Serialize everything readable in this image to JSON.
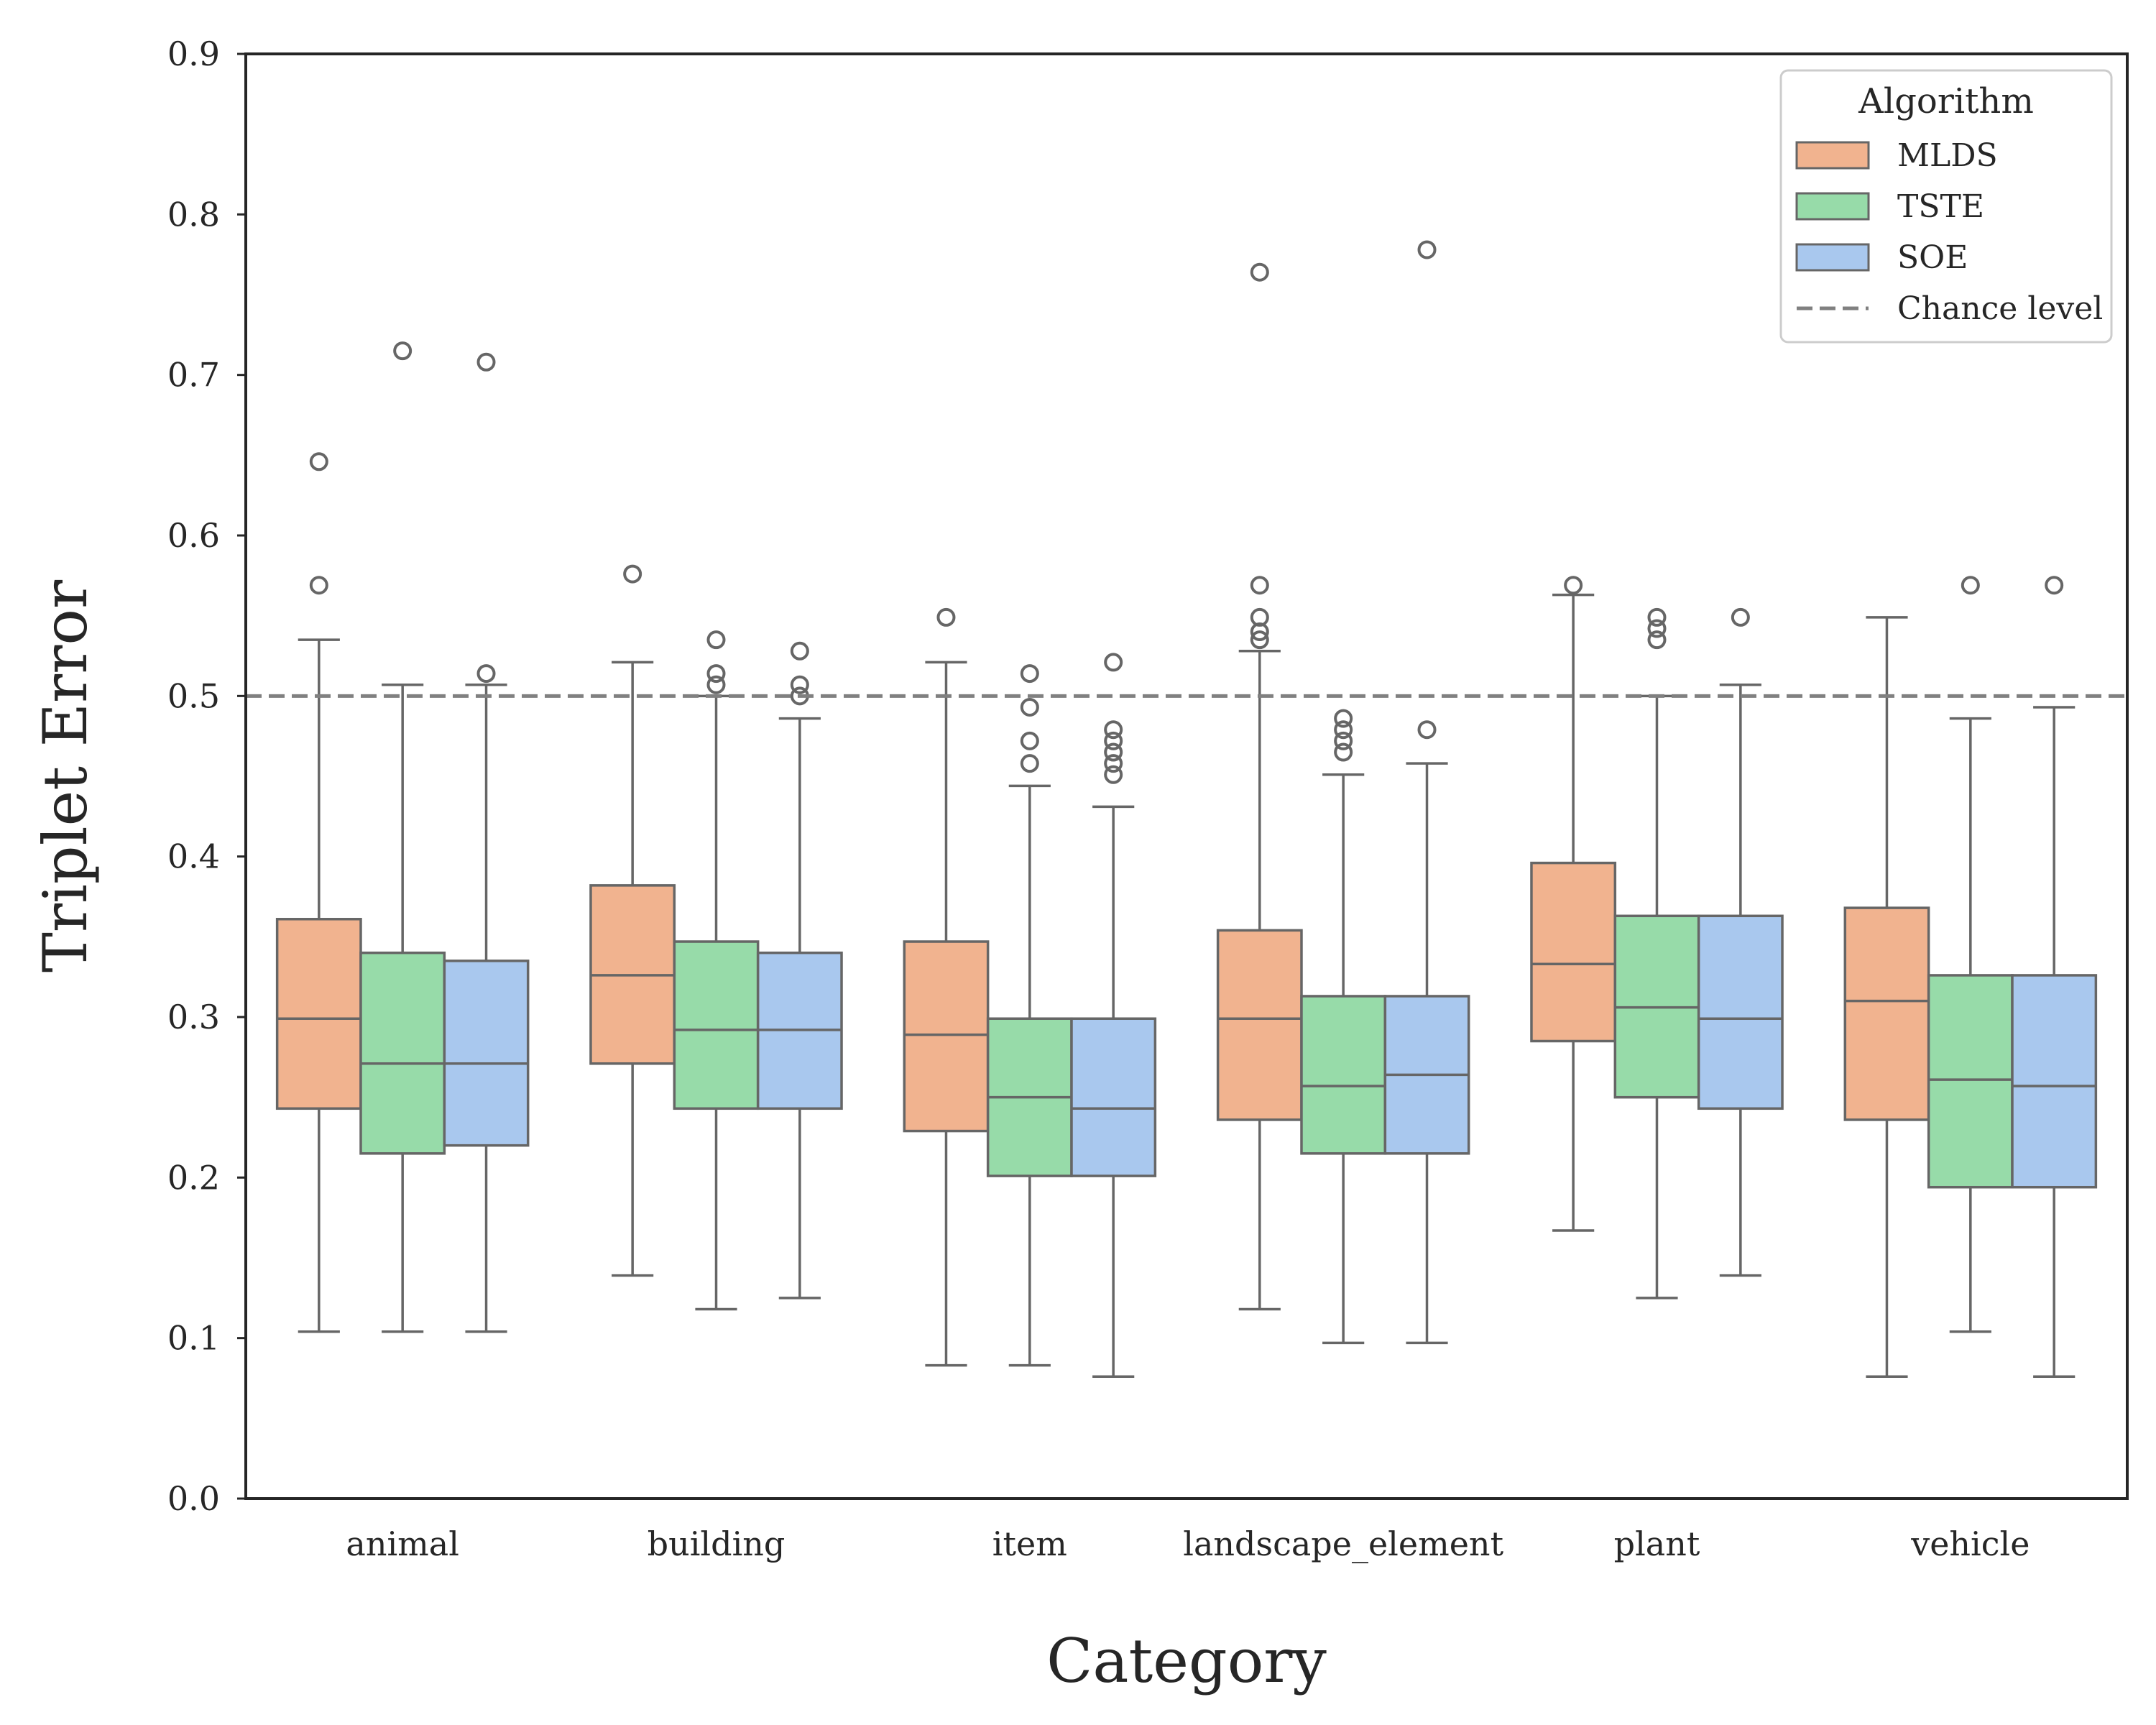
{
  "chart_data": {
    "type": "boxplot",
    "xlabel": "Category",
    "ylabel": "Triplet Error",
    "ylim": [
      0.0,
      0.9
    ],
    "yticks": [
      "0.0",
      "0.1",
      "0.2",
      "0.3",
      "0.4",
      "0.5",
      "0.6",
      "0.7",
      "0.8",
      "0.9"
    ],
    "grid": false,
    "categories": [
      "animal",
      "building",
      "item",
      "landscape_element",
      "plant",
      "vehicle"
    ],
    "legend": {
      "title": "Algorithm",
      "position": "top-right",
      "chance_label": "Chance level"
    },
    "chance_level": 0.5,
    "colors": {
      "MLDS": "#f1b38f",
      "TSTE": "#97dba9",
      "SOE": "#a9c8ee",
      "edge": "#666666",
      "chance": "#808080"
    },
    "series": [
      {
        "name": "MLDS",
        "boxes": [
          {
            "whislo": 0.104,
            "q1": 0.243,
            "med": 0.299,
            "q3": 0.361,
            "whishi": 0.535,
            "fliers": [
              0.569,
              0.646
            ]
          },
          {
            "whislo": 0.139,
            "q1": 0.271,
            "med": 0.326,
            "q3": 0.382,
            "whishi": 0.521,
            "fliers": [
              0.576
            ]
          },
          {
            "whislo": 0.083,
            "q1": 0.229,
            "med": 0.289,
            "q3": 0.347,
            "whishi": 0.521,
            "fliers": [
              0.549
            ]
          },
          {
            "whislo": 0.118,
            "q1": 0.236,
            "med": 0.299,
            "q3": 0.354,
            "whishi": 0.528,
            "fliers": [
              0.535,
              0.54,
              0.549,
              0.569,
              0.764
            ]
          },
          {
            "whislo": 0.167,
            "q1": 0.285,
            "med": 0.333,
            "q3": 0.396,
            "whishi": 0.563,
            "fliers": [
              0.569
            ]
          },
          {
            "whislo": 0.076,
            "q1": 0.236,
            "med": 0.31,
            "q3": 0.368,
            "whishi": 0.549,
            "fliers": []
          }
        ]
      },
      {
        "name": "TSTE",
        "boxes": [
          {
            "whislo": 0.104,
            "q1": 0.215,
            "med": 0.271,
            "q3": 0.34,
            "whishi": 0.507,
            "fliers": [
              0.715
            ]
          },
          {
            "whislo": 0.118,
            "q1": 0.243,
            "med": 0.292,
            "q3": 0.347,
            "whishi": 0.5,
            "fliers": [
              0.507,
              0.514,
              0.535
            ]
          },
          {
            "whislo": 0.083,
            "q1": 0.201,
            "med": 0.25,
            "q3": 0.299,
            "whishi": 0.444,
            "fliers": [
              0.458,
              0.472,
              0.493,
              0.514
            ]
          },
          {
            "whislo": 0.097,
            "q1": 0.215,
            "med": 0.257,
            "q3": 0.313,
            "whishi": 0.451,
            "fliers": [
              0.465,
              0.472,
              0.479,
              0.486
            ]
          },
          {
            "whislo": 0.125,
            "q1": 0.25,
            "med": 0.306,
            "q3": 0.363,
            "whishi": 0.5,
            "fliers": [
              0.535,
              0.542,
              0.549
            ]
          },
          {
            "whislo": 0.104,
            "q1": 0.194,
            "med": 0.261,
            "q3": 0.326,
            "whishi": 0.486,
            "fliers": [
              0.569
            ]
          }
        ]
      },
      {
        "name": "SOE",
        "boxes": [
          {
            "whislo": 0.104,
            "q1": 0.22,
            "med": 0.271,
            "q3": 0.335,
            "whishi": 0.507,
            "fliers": [
              0.514,
              0.708
            ]
          },
          {
            "whislo": 0.125,
            "q1": 0.243,
            "med": 0.292,
            "q3": 0.34,
            "whishi": 0.486,
            "fliers": [
              0.5,
              0.507,
              0.528
            ]
          },
          {
            "whislo": 0.076,
            "q1": 0.201,
            "med": 0.243,
            "q3": 0.299,
            "whishi": 0.431,
            "fliers": [
              0.451,
              0.458,
              0.465,
              0.472,
              0.479,
              0.521
            ]
          },
          {
            "whislo": 0.097,
            "q1": 0.215,
            "med": 0.264,
            "q3": 0.313,
            "whishi": 0.458,
            "fliers": [
              0.479,
              0.778
            ]
          },
          {
            "whislo": 0.139,
            "q1": 0.243,
            "med": 0.299,
            "q3": 0.363,
            "whishi": 0.507,
            "fliers": [
              0.549
            ]
          },
          {
            "whislo": 0.076,
            "q1": 0.194,
            "med": 0.257,
            "q3": 0.326,
            "whishi": 0.493,
            "fliers": [
              0.569
            ]
          }
        ]
      }
    ]
  }
}
